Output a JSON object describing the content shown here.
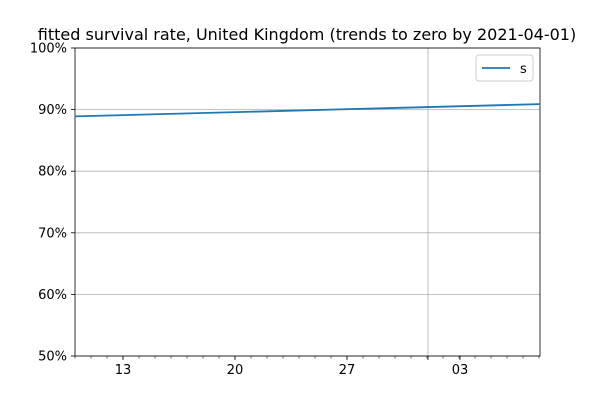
{
  "chart_data": {
    "type": "line",
    "title": "fitted survival rate, United Kingdom (trends to zero by 2021-04-01)",
    "xlabel": "",
    "ylabel": "",
    "ylim": [
      0.5,
      1.0
    ],
    "y_ticks": [
      {
        "value": 0.5,
        "label": "50%"
      },
      {
        "value": 0.6,
        "label": "60%"
      },
      {
        "value": 0.7,
        "label": "70%"
      },
      {
        "value": 0.8,
        "label": "80%"
      },
      {
        "value": 0.9,
        "label": "90%"
      },
      {
        "value": 1.0,
        "label": "100%"
      }
    ],
    "x_ticks_major": [
      "13",
      "20",
      "27",
      "03"
    ],
    "grid": true,
    "legend": {
      "position": "top-right",
      "entries": [
        "s"
      ]
    },
    "series": [
      {
        "name": "s",
        "color": "#1f77b4",
        "values": [
          0.889,
          0.909
        ]
      }
    ]
  }
}
